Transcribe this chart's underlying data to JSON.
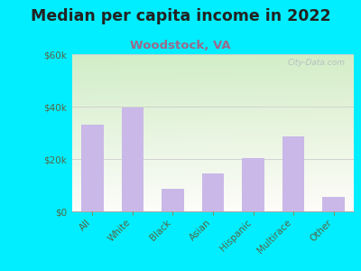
{
  "title": "Median per capita income in 2022",
  "subtitle": "Woodstock, VA",
  "categories": [
    "All",
    "White",
    "Black",
    "Asian",
    "Hispanic",
    "Multirace",
    "Other"
  ],
  "values": [
    33000,
    39500,
    8500,
    14500,
    20500,
    28500,
    5500
  ],
  "bar_color": "#c9b8e8",
  "background_outer": "#00eeff",
  "title_color": "#222222",
  "subtitle_color": "#9b6a8a",
  "tick_label_color": "#556644",
  "ylim": [
    0,
    60000
  ],
  "yticks": [
    0,
    20000,
    40000,
    60000
  ],
  "ytick_labels": [
    "$0",
    "$20k",
    "$40k",
    "$60k"
  ],
  "watermark": "City-Data.com",
  "title_fontsize": 12.5,
  "subtitle_fontsize": 9.5,
  "tick_fontsize": 7.5
}
